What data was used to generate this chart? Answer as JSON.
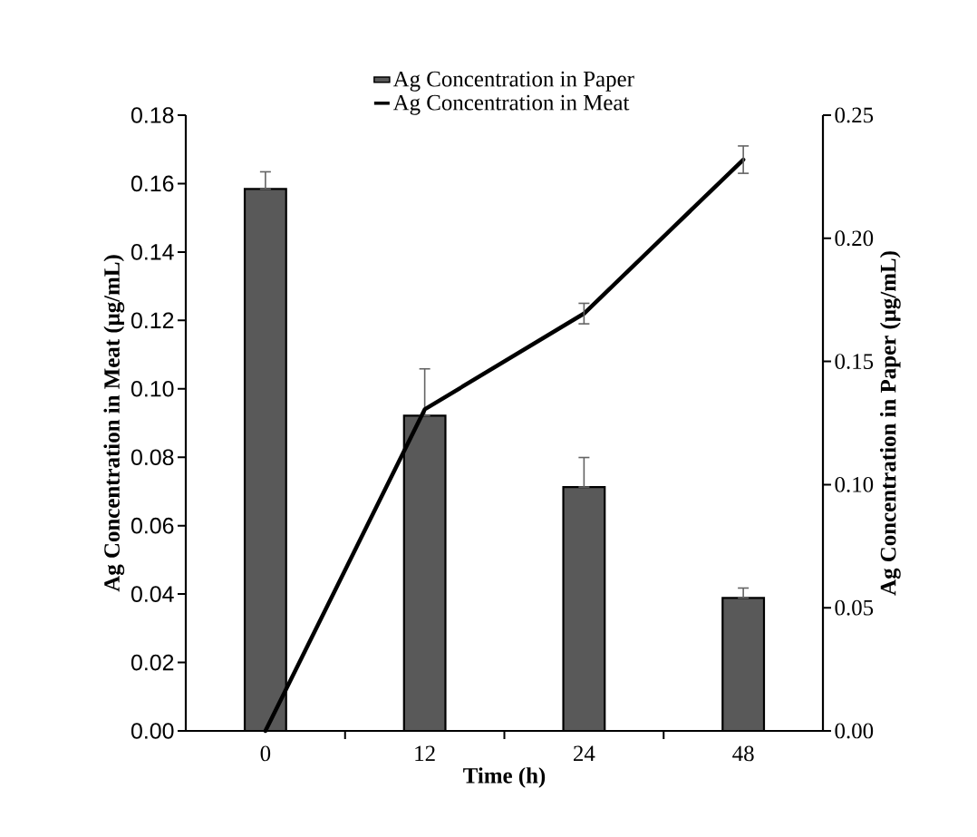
{
  "chart_data": {
    "type": "bar",
    "categories": [
      "0",
      "12",
      "24",
      "48"
    ],
    "xlabel": "Time (h)",
    "ylabel": "Ag Concentration in Meat (μg/mL)",
    "y2label": "Ag Concentration in Paper (μg/mL)",
    "ylim": [
      0,
      0.18
    ],
    "yticks": [
      {
        "value": 0,
        "label": "0.00"
      },
      {
        "value": 0.02,
        "label": "0.02"
      },
      {
        "value": 0.04,
        "label": "0.04"
      },
      {
        "value": 0.06,
        "label": "0.06"
      },
      {
        "value": 0.08,
        "label": "0.08"
      },
      {
        "value": 0.1,
        "label": "0.10"
      },
      {
        "value": 0.12,
        "label": "0.12"
      },
      {
        "value": 0.14,
        "label": "0.14"
      },
      {
        "value": 0.16,
        "label": "0.16"
      },
      {
        "value": 0.18,
        "label": "0.18"
      }
    ],
    "y2lim": [
      0,
      0.25
    ],
    "y2ticks": [
      {
        "value": 0,
        "label": "0.00"
      },
      {
        "value": 0.05,
        "label": "0.05"
      },
      {
        "value": 0.1,
        "label": "0.10"
      },
      {
        "value": 0.15,
        "label": "0.15"
      },
      {
        "value": 0.2,
        "label": "0.20"
      },
      {
        "value": 0.25,
        "label": "0.25"
      }
    ],
    "legend": "top",
    "series": [
      {
        "name": "Ag Concentration in Paper",
        "axis": "y2",
        "color": "#595959",
        "values": [
          0.22,
          0.128,
          0.099,
          0.054
        ],
        "errors": [
          [
            0.22,
            0.227
          ],
          [
            0.128,
            0.147
          ],
          [
            0.099,
            0.111
          ],
          [
            0.054,
            0.058
          ]
        ]
      },
      {
        "name": "Ag Concentration in Meat",
        "type": "line",
        "color": "#000000",
        "values": [
          0,
          0.094,
          0.122,
          0.167
        ],
        "errors": [
          null,
          null,
          0.003,
          0.004
        ]
      }
    ]
  }
}
